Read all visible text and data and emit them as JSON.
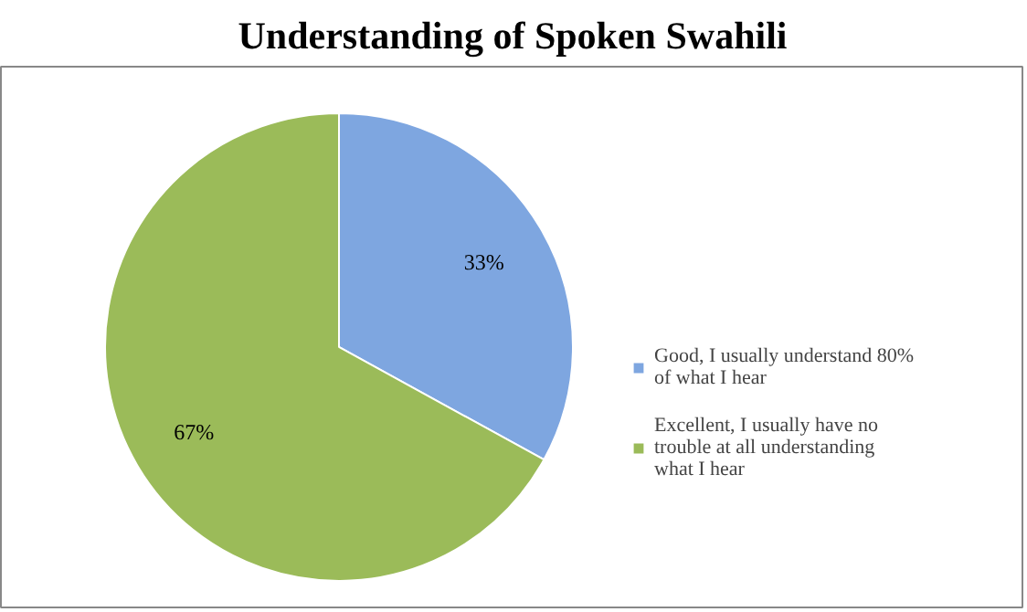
{
  "chart_data": {
    "type": "pie",
    "title": "Understanding of Spoken Swahili",
    "categories": [
      "Good, I usually understand 80% of what I hear",
      "Excellent, I usually have no trouble at all understanding what I hear"
    ],
    "values": [
      33,
      67
    ],
    "colors": [
      "#7ea6e0",
      "#9bbb59"
    ],
    "value_labels": [
      "33%",
      "67%"
    ],
    "legend": "right"
  }
}
